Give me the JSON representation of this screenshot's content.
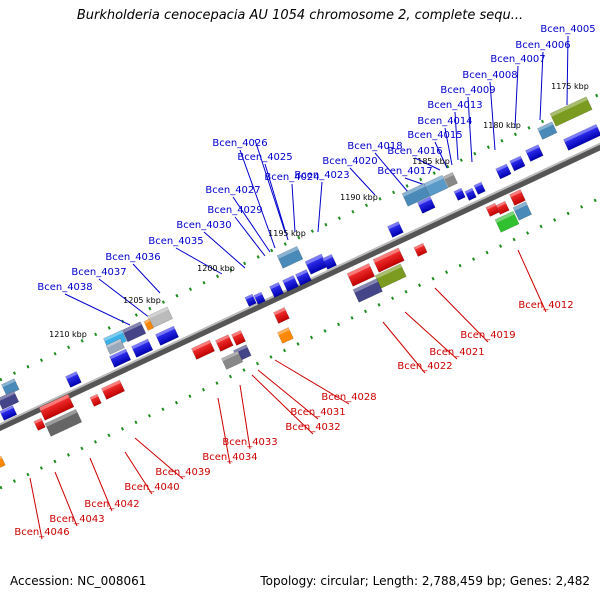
{
  "title": "Burkholderia cenocepacia AU 1054 chromosome 2, complete sequ...",
  "footer": {
    "accession": "Accession: NC_008061",
    "summary": "Topology: circular; Length: 2,788,459 bp; Genes: 2,482"
  },
  "colors": {
    "forward_label": "#0000cc",
    "reverse_label": "#cc0000",
    "backbone": "#777777"
  },
  "kbp_ticks": [
    "1175 kbp",
    "1180 kbp",
    "1185 kbp",
    "1190 kbp",
    "1195 kbp",
    "1200 kbp",
    "1205 kbp",
    "1210 kbp"
  ],
  "forward_genes": [
    "Bcen_4005",
    "Bcen_4006",
    "Bcen_4007",
    "Bcen_4008",
    "Bcen_4009",
    "Bcen_4013",
    "Bcen_4014",
    "Bcen_4015",
    "Bcen_4016",
    "Bcen_4017",
    "Bcen_4018",
    "Bcen_4020",
    "Bcen_4023",
    "Bcen_4024",
    "Bcen_4025",
    "Bcen_4026",
    "Bcen_4027",
    "Bcen_4029",
    "Bcen_4030",
    "Bcen_4035",
    "Bcen_4036",
    "Bcen_4037",
    "Bcen_4038"
  ],
  "reverse_genes": [
    "Bcen_4012",
    "Bcen_4019",
    "Bcen_4021",
    "Bcen_4022",
    "Bcen_4028",
    "Bcen_4031",
    "Bcen_4032",
    "Bcen_4033",
    "Bcen_4034",
    "Bcen_4039",
    "Bcen_4040",
    "Bcen_4042",
    "Bcen_4043",
    "Bcen_4046"
  ]
}
